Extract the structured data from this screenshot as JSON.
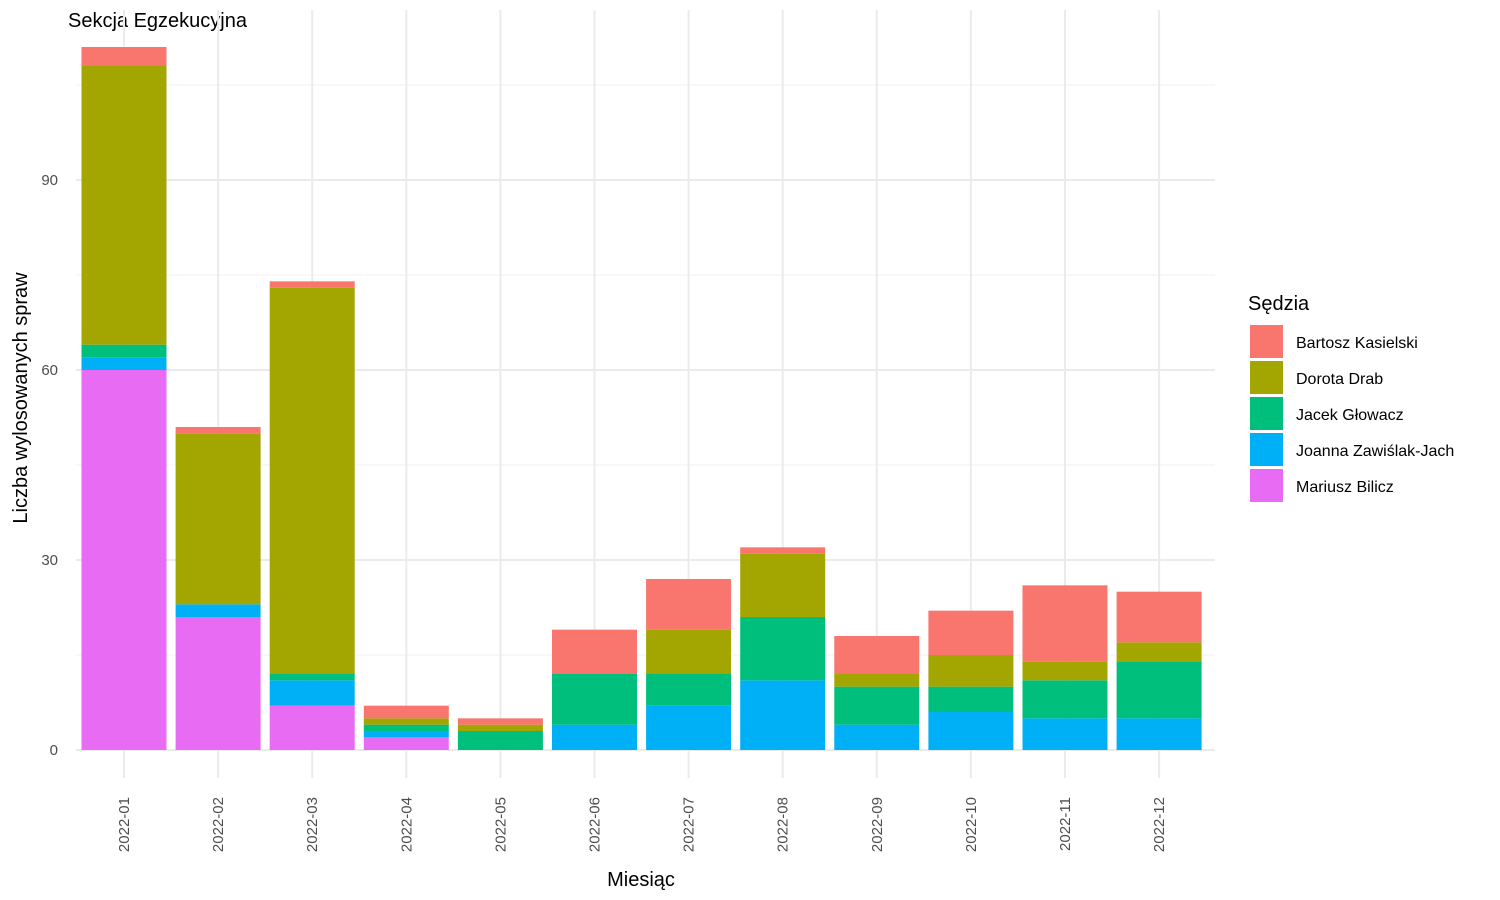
{
  "chart_data": {
    "type": "bar",
    "stacked": true,
    "title": "Sekcja Egzekucyjna",
    "xlabel": "Miesiąc",
    "ylabel": "Liczba wylosowanych spraw",
    "legend_title": "Sędzia",
    "legend_position": "right",
    "grid": true,
    "ylim": [
      0,
      116
    ],
    "yticks": [
      0,
      30,
      60,
      90
    ],
    "categories": [
      "2022-01",
      "2022-02",
      "2022-03",
      "2022-04",
      "2022-05",
      "2022-06",
      "2022-07",
      "2022-08",
      "2022-09",
      "2022-10",
      "2022-11",
      "2022-12"
    ],
    "series": [
      {
        "name": "Mariusz Bilicz",
        "color": "#E76BF3",
        "values": [
          60,
          21,
          7,
          2,
          0,
          0,
          0,
          0,
          0,
          0,
          0,
          0
        ]
      },
      {
        "name": "Joanna Zawiślak-Jach",
        "color": "#00B0F6",
        "values": [
          2,
          2,
          4,
          1,
          0,
          4,
          7,
          11,
          4,
          6,
          5,
          5
        ]
      },
      {
        "name": "Jacek Głowacz",
        "color": "#00BF7D",
        "values": [
          2,
          0,
          1,
          1,
          3,
          8,
          5,
          10,
          6,
          4,
          6,
          9
        ]
      },
      {
        "name": "Dorota Drab",
        "color": "#A3A500",
        "values": [
          44,
          27,
          61,
          1,
          1,
          0,
          7,
          10,
          2,
          5,
          3,
          3
        ]
      },
      {
        "name": "Bartosz Kasielski",
        "color": "#F8766D",
        "values": [
          3,
          1,
          1,
          2,
          1,
          7,
          8,
          1,
          6,
          7,
          12,
          8
        ]
      }
    ],
    "legend_order": [
      "Bartosz Kasielski",
      "Dorota Drab",
      "Jacek Głowacz",
      "Joanna Zawiślak-Jach",
      "Mariusz Bilicz"
    ]
  }
}
